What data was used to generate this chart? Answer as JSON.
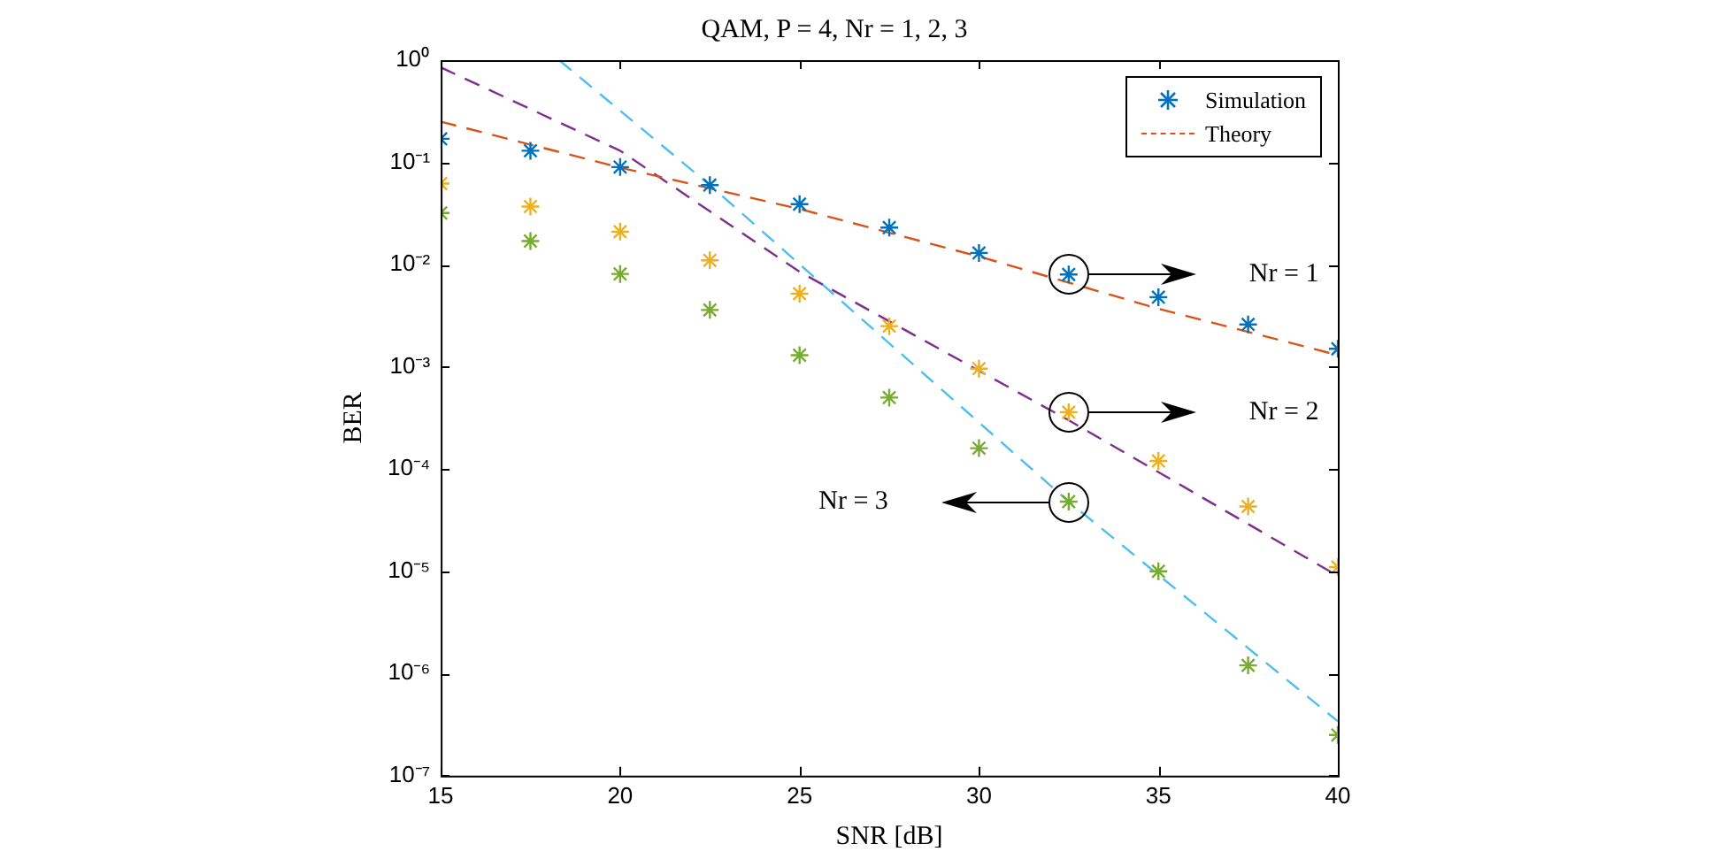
{
  "chart_data": {
    "type": "line",
    "title": "QAM, P = 4, Nr = 1, 2, 3",
    "xlabel": "SNR [dB]",
    "ylabel": "BER",
    "log": "y",
    "grid": false,
    "legend": "top right",
    "xlim": [
      15,
      40
    ],
    "xticks": [
      15,
      20,
      25,
      30,
      35,
      40
    ],
    "ylim": [
      1e-07,
      1
    ],
    "yticks": [
      {
        "value": 1e-07,
        "label": "10⁻⁷"
      },
      {
        "value": 1e-06,
        "label": "10⁻⁶"
      },
      {
        "value": 1e-05,
        "label": "10⁻⁵"
      },
      {
        "value": 0.0001,
        "label": "10⁻⁴"
      },
      {
        "value": 0.001,
        "label": "10⁻³"
      },
      {
        "value": 0.01,
        "label": "10⁻²"
      },
      {
        "value": 0.1,
        "label": "10⁻¹"
      },
      {
        "value": 1,
        "label": "10⁰"
      }
    ],
    "series": [
      {
        "name": "Simulation",
        "type": "scatter",
        "marker": "cross",
        "color": "#0072bd",
        "x": [
          15,
          17.5,
          20,
          22.5,
          25,
          27.5,
          30,
          32.5,
          35,
          37.5,
          40
        ],
        "values": [
          0.17,
          0.13,
          0.09,
          0.06,
          0.039,
          0.023,
          0.013,
          0.008,
          0.0048,
          0.0026,
          0.0015
        ]
      },
      {
        "name": "Theory",
        "line_style": "dashed",
        "color": "#d95319",
        "x": [
          15,
          20,
          25,
          30,
          35,
          37.5,
          40
        ],
        "values": [
          0.25,
          0.089,
          0.035,
          0.012,
          0.0037,
          0.0022,
          0.0013
        ]
      },
      {
        "type": "scatter",
        "marker": "cross",
        "color": "#edb120",
        "x": [
          15,
          17.5,
          20,
          22.5,
          25,
          27.5,
          30,
          32.5,
          35,
          37.5,
          40
        ],
        "values": [
          0.062,
          0.037,
          0.021,
          0.011,
          0.0052,
          0.0025,
          0.00096,
          0.00036,
          0.00012,
          4.3e-05,
          1.1e-05
        ]
      },
      {
        "line_style": "dashed",
        "color": "#7e2f8e",
        "x": [
          15,
          20,
          25,
          32.5,
          40
        ],
        "values": [
          0.85,
          0.13,
          0.0085,
          0.0003,
          9e-06
        ]
      },
      {
        "type": "scatter",
        "marker": "cross",
        "color": "#77ac30",
        "x": [
          15,
          17.5,
          20,
          22.5,
          25,
          27.5,
          30,
          32.5,
          35,
          37.5,
          40
        ],
        "values": [
          0.032,
          0.017,
          0.0081,
          0.0036,
          0.0013,
          0.0005,
          0.00016,
          4.8e-05,
          1e-05,
          1.2e-06,
          2.5e-07
        ]
      },
      {
        "line_style": "dashed",
        "color": "#4dbeee",
        "x": [
          18.3,
          22.5,
          32.5,
          40
        ],
        "values": [
          1,
          0.06,
          4.8e-05,
          3.4e-07
        ]
      }
    ],
    "annotations": [
      "Nr = 1",
      "Nr = 2",
      "Nr = 3"
    ]
  }
}
